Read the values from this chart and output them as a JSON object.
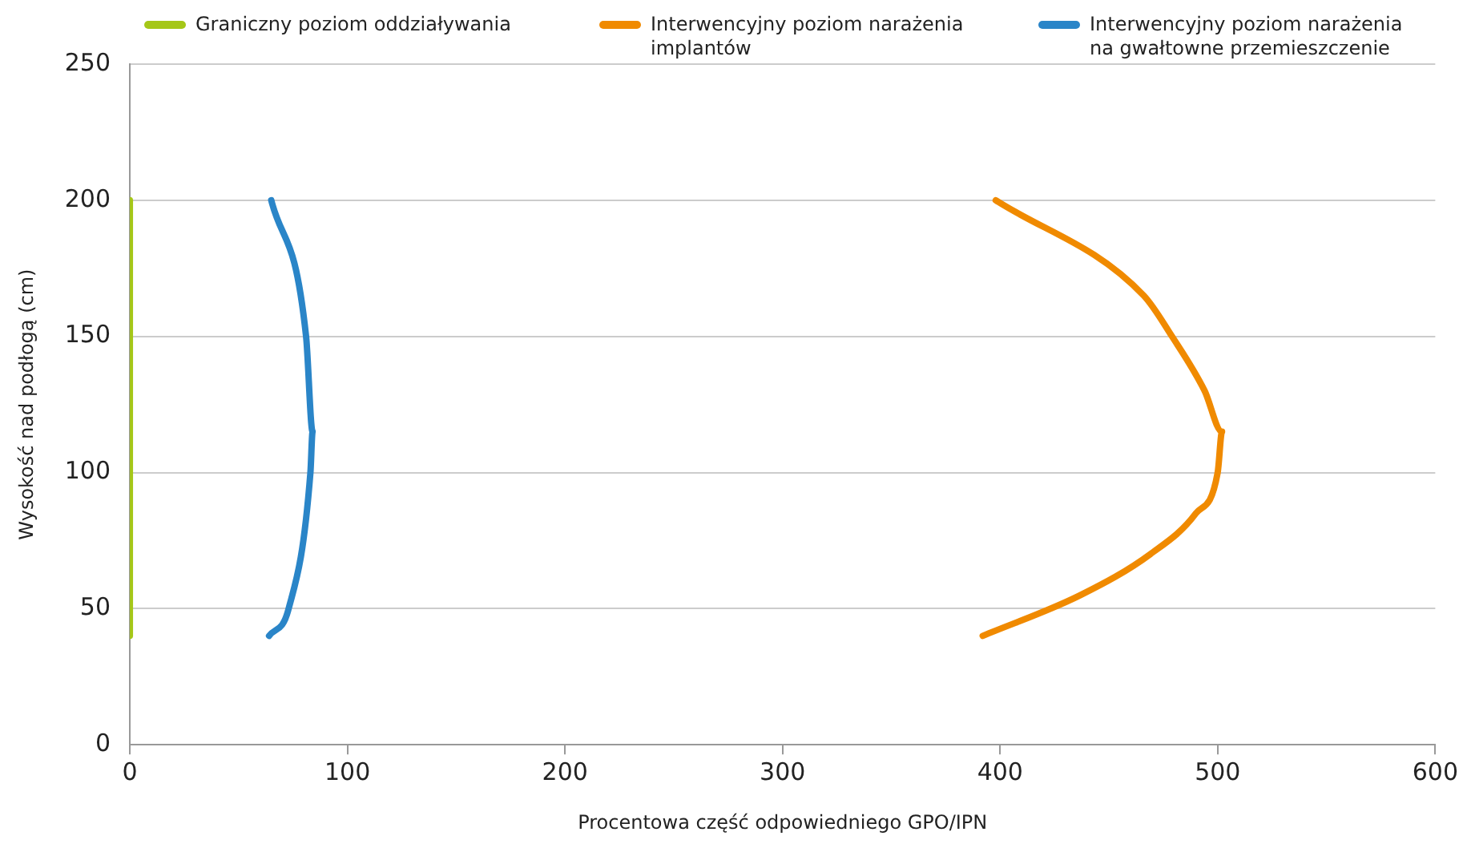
{
  "chart_data": {
    "type": "line",
    "xlabel": "Procentowa część odpowiedniego GPO/IPN",
    "ylabel": "Wysokość nad podłogą (cm)",
    "xlim": [
      0,
      600
    ],
    "xticks": [
      0,
      100,
      200,
      300,
      400,
      500,
      600
    ],
    "ylim": [
      0,
      250
    ],
    "yticks": [
      0,
      50,
      100,
      150,
      200,
      250
    ],
    "grid": "y",
    "legend": "top",
    "marker": "none",
    "line_style": "solid",
    "series": [
      {
        "name": "Graniczny poziom oddziaływania",
        "color": "#a5c718",
        "x": [
          0,
          0
        ],
        "values": [
          40,
          200
        ]
      },
      {
        "name": "Interwencyjny poziom narażenia implantów",
        "color": "#f08a00",
        "x": [
          392,
          437,
          469,
          490,
          500,
          502,
          494,
          479,
          466,
          398
        ],
        "values": [
          40,
          55,
          70,
          85,
          100,
          115,
          130,
          150,
          165,
          200
        ]
      },
      {
        "name": "Interwencyjny poziom narażenia na gwałtowne przemieszczenie",
        "color": "#2a85c8",
        "x": [
          64,
          73,
          83,
          84,
          81,
          65
        ],
        "values": [
          40,
          50,
          100,
          115,
          150,
          200
        ]
      }
    ]
  }
}
